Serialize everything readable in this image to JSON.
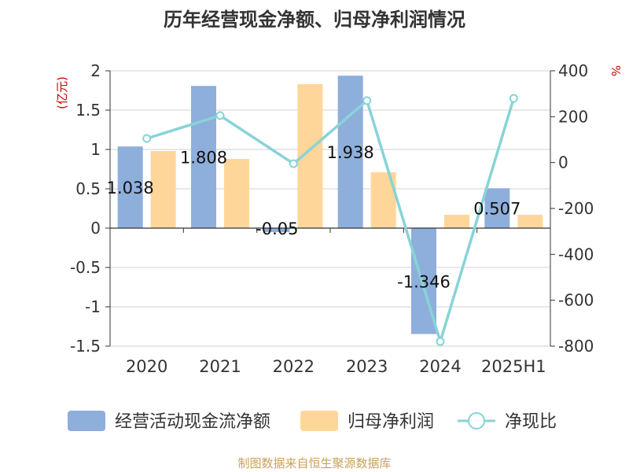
{
  "chart_data": {
    "type": "bar",
    "title": "历年经营现金净额、归母净利润情况",
    "categories": [
      "2020",
      "2021",
      "2022",
      "2023",
      "2024",
      "2025H1"
    ],
    "y_left": {
      "label": "(亿元)",
      "min": -1.5,
      "max": 2,
      "ticks": [
        "2",
        "1.5",
        "1",
        "0.5",
        "0",
        "-0.5",
        "-1",
        "-1.5"
      ]
    },
    "y_right": {
      "label": "%",
      "min": -800,
      "max": 400,
      "ticks": [
        "400",
        "200",
        "0",
        "-200",
        "-400",
        "-600",
        "-800"
      ]
    },
    "series": [
      {
        "name": "经营活动现金流净额",
        "kind": "bar",
        "axis": "left",
        "color": "#8eaedc",
        "values": [
          1.038,
          1.808,
          -0.05,
          1.938,
          -1.346,
          0.507
        ],
        "labels": [
          "1.038",
          "1.808",
          "-0.05",
          "1.938",
          "-1.346",
          "0.507"
        ]
      },
      {
        "name": "归母净利润",
        "kind": "bar",
        "axis": "left",
        "color": "#ffd699",
        "values": [
          0.98,
          0.88,
          1.83,
          0.71,
          0.17,
          0.17
        ]
      },
      {
        "name": "净现比",
        "kind": "line",
        "axis": "right",
        "color": "#88d3d8",
        "values": [
          105,
          205,
          -5,
          270,
          -780,
          280
        ]
      }
    ],
    "grid": true,
    "legend_position": "bottom"
  },
  "source": "制图数据来自恒生聚源数据库",
  "colors": {
    "title": "#333333",
    "axis_text": "#333333",
    "unit": "#cc0000",
    "grid": "#d0d0d0",
    "source": "#c9a15a"
  }
}
